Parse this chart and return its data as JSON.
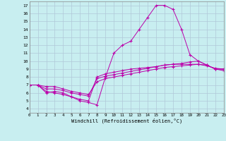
{
  "xlabel": "Windchill (Refroidissement éolien,°C)",
  "bg_color": "#c8eef0",
  "grid_color": "#b0c8d8",
  "line_color": "#bb00aa",
  "xmin": 0,
  "xmax": 23,
  "ymin": 3.5,
  "ymax": 17.5,
  "yticks": [
    4,
    5,
    6,
    7,
    8,
    9,
    10,
    11,
    12,
    13,
    14,
    15,
    16,
    17
  ],
  "xticks": [
    0,
    1,
    2,
    3,
    4,
    5,
    6,
    7,
    8,
    9,
    10,
    11,
    12,
    13,
    14,
    15,
    16,
    17,
    18,
    19,
    20,
    21,
    22,
    23
  ],
  "series": [
    {
      "x": [
        0,
        1,
        2,
        3,
        4,
        5,
        6,
        7,
        8,
        9,
        10,
        11,
        12,
        13,
        14,
        15,
        16,
        17,
        18,
        19,
        20,
        21,
        22,
        23
      ],
      "y": [
        7,
        7,
        6,
        6.2,
        6,
        5.5,
        5,
        4.8,
        4.5,
        8,
        11,
        12,
        12.5,
        14,
        15.5,
        17,
        17,
        16.5,
        14,
        10.8,
        10,
        9.5,
        9,
        9
      ]
    },
    {
      "x": [
        0,
        1,
        2,
        3,
        4,
        5,
        6,
        7,
        8,
        9,
        10,
        11,
        12,
        13,
        14,
        15,
        16,
        17,
        18,
        19,
        20,
        21,
        22,
        23
      ],
      "y": [
        7,
        7,
        6.2,
        6,
        5.8,
        5.5,
        5.2,
        5.0,
        8.0,
        8.4,
        8.6,
        8.8,
        9.0,
        9.1,
        9.2,
        9.3,
        9.5,
        9.6,
        9.7,
        9.9,
        10.0,
        9.5,
        9.0,
        9.0
      ]
    },
    {
      "x": [
        0,
        1,
        2,
        3,
        4,
        5,
        6,
        7,
        8,
        9,
        10,
        11,
        12,
        13,
        14,
        15,
        16,
        17,
        18,
        19,
        20,
        21,
        22,
        23
      ],
      "y": [
        7,
        7,
        6.5,
        6.5,
        6.3,
        6.0,
        5.8,
        5.6,
        7.8,
        8.1,
        8.3,
        8.5,
        8.7,
        8.9,
        9.1,
        9.3,
        9.5,
        9.6,
        9.6,
        9.6,
        9.6,
        9.4,
        9.1,
        9.0
      ]
    },
    {
      "x": [
        0,
        1,
        2,
        3,
        4,
        5,
        6,
        7,
        8,
        9,
        10,
        11,
        12,
        13,
        14,
        15,
        16,
        17,
        18,
        19,
        20,
        21,
        22,
        23
      ],
      "y": [
        7,
        7,
        6.8,
        6.8,
        6.5,
        6.2,
        6.0,
        5.8,
        7.4,
        7.8,
        8.0,
        8.2,
        8.4,
        8.6,
        8.8,
        9.0,
        9.2,
        9.3,
        9.4,
        9.5,
        9.6,
        9.5,
        9.0,
        8.8
      ]
    }
  ]
}
